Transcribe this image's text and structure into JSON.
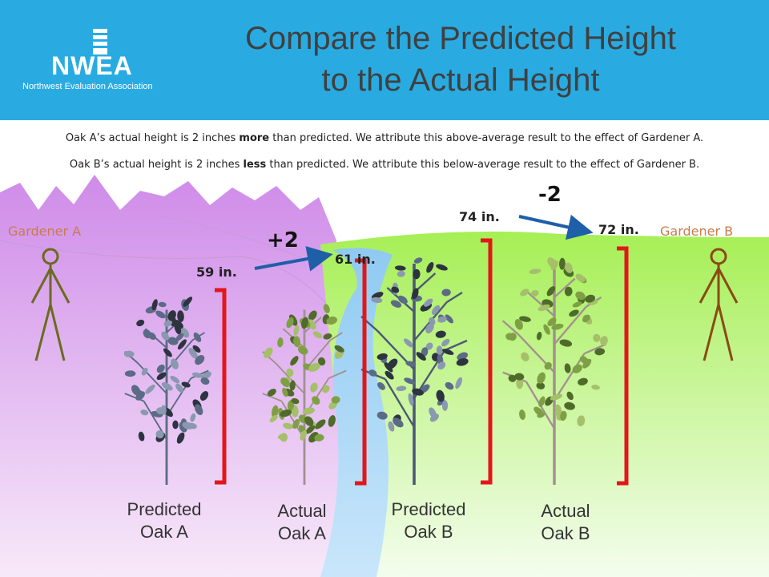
{
  "header": {
    "logo_text": "NWEA",
    "logo_subtext": "Northwest Evaluation Association",
    "title_line1": "Compare the Predicted Height",
    "title_line2": "to the Actual Height"
  },
  "captions": {
    "line1_a": "Oak A’s actual height is 2 inches ",
    "line1_bold": "more",
    "line1_b": " than predicted. We attribute this above-average result to the effect of Gardener A.",
    "line2_a": "Oak B’s actual height is 2 inches ",
    "line2_bold": "less",
    "line2_b": " than predicted. We attribute this below-average result to the effect of Gardener B."
  },
  "gardeners": {
    "a": "Gardener A",
    "b": "Gardener B"
  },
  "heights": {
    "predicted_a": "59 in.",
    "actual_a": "61 in.",
    "predicted_b": "74 in.",
    "actual_b": "72 in."
  },
  "differences": {
    "a": "+2",
    "b": "-2"
  },
  "trees": {
    "predicted_a": {
      "line1": "Predicted",
      "line2": "Oak A"
    },
    "actual_a": {
      "line1": "Actual",
      "line2": "Oak A"
    },
    "predicted_b": {
      "line1": "Predicted",
      "line2": "Oak B"
    },
    "actual_b": {
      "line1": "Actual",
      "line2": "Oak B"
    }
  },
  "colors": {
    "header": "#29abe2",
    "title": "#404040",
    "bracket": "#e3161b",
    "arrow": "#1f5fa8",
    "gardener_label": "#c77d4b",
    "gardener_figure": "#6b6b1f",
    "gardener_b_figure": "#8a4a14",
    "mountains": "#c98ee6",
    "hill": "#a6ef55",
    "river": "#a9d6f5"
  }
}
